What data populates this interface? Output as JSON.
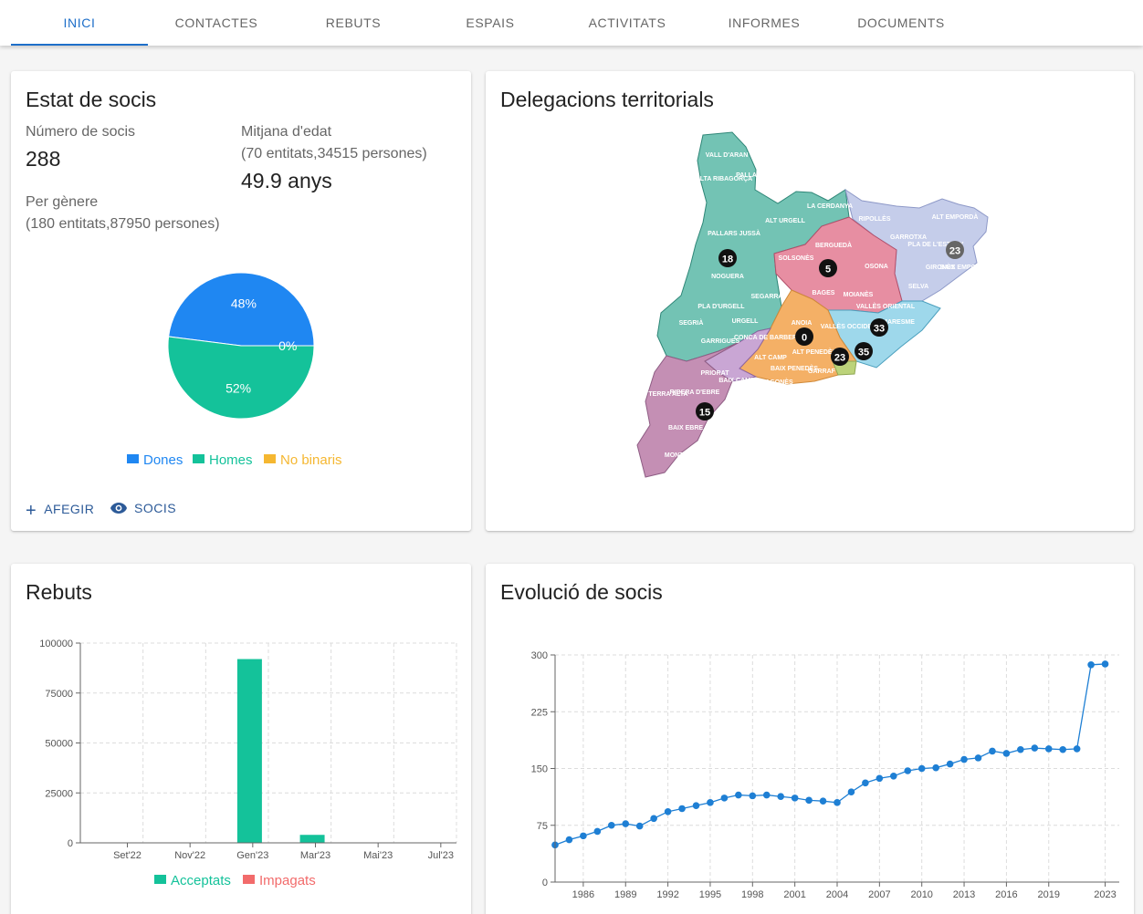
{
  "nav": {
    "tabs": [
      {
        "label": "INICI",
        "active": true
      },
      {
        "label": "CONTACTES"
      },
      {
        "label": "REBUTS"
      },
      {
        "label": "ESPAIS"
      },
      {
        "label": "ACTIVITATS"
      },
      {
        "label": "INFORMES"
      },
      {
        "label": "DOCUMENTS"
      }
    ]
  },
  "socis": {
    "title": "Estat de socis",
    "count_label": "Número de socis",
    "count_value": "288",
    "age_label": "Mitjana d'edat",
    "age_sub": "(70 entitats,34515 persones)",
    "age_value": "49.9 anys",
    "gender_label": "Per gènere",
    "gender_sub": "(180 entitats,87950 persones)",
    "actions": {
      "add": "AFEGIR",
      "view": "SOCIS"
    }
  },
  "gender_chart": {
    "type": "pie",
    "labels": [
      "Dones",
      "Homes",
      "No binaris"
    ],
    "values": [
      48,
      52,
      0
    ],
    "display": [
      "48%",
      "52%",
      "0%"
    ],
    "colors": [
      "#1f87f2",
      "#14c29a",
      "#f5b731"
    ]
  },
  "map": {
    "title": "Delegacions territorials",
    "markers": [
      "18",
      "5",
      "23",
      "0",
      "33",
      "35",
      "23",
      "15"
    ],
    "regions": [
      "VALL D'ARAN",
      "ALTA RIBAGORÇA",
      "PALLARS SOBIRÀ",
      "ALT URGELL",
      "LA CERDANYA",
      "RIPOLLÈS",
      "ALT EMPORDÀ",
      "GARROTXA",
      "PLA DE L'ESTANY",
      "PALLARS JUSSÀ",
      "BERGUEDÀ",
      "SOLSONÈS",
      "OSONA",
      "GIRONÈS",
      "BAIX EMPORDÀ",
      "NOGUERA",
      "SELVA",
      "BAGES",
      "MOIANÈS",
      "SEGARRA",
      "PLA D'URGELL",
      "URGELL",
      "SEGRIÀ",
      "ANOIA",
      "VALLÈS ORIENTAL",
      "VALLÈS OCCIDENTAL",
      "MARESME",
      "CONCA DE BARBERÀ",
      "GARRIGUES",
      "ALT CAMP",
      "ALT PENEDÈS",
      "BAIX PENEDÈS",
      "GARRAF",
      "PRIORAT",
      "TARRAGONÈS",
      "BAIX CAMP",
      "RIBERA D'EBRE",
      "TERRA ALTA",
      "BAIX EBRE",
      "MONTSIÀ"
    ]
  },
  "rebuts": {
    "title": "Rebuts",
    "legend": [
      {
        "label": "Acceptats",
        "color": "#14c29a"
      },
      {
        "label": "Impagats",
        "color": "#f26b6b"
      }
    ]
  },
  "evolucio": {
    "title": "Evolució de socis"
  },
  "chart_data": [
    {
      "type": "bar",
      "categories": [
        "Set'22",
        "Nov'22",
        "Gen'23",
        "Mar'23",
        "Mai'23",
        "Jul'23"
      ],
      "yticks": [
        "0",
        "25000",
        "50000",
        "75000",
        "100000"
      ],
      "ylim": [
        0,
        100000
      ],
      "grid": true,
      "legend_position": "bottom",
      "series": [
        {
          "name": "Acceptats",
          "color": "#14c29a",
          "points": [
            {
              "x": 2.7,
              "value": 92000
            },
            {
              "x": 3.7,
              "value": 4000
            }
          ]
        },
        {
          "name": "Impagats",
          "color": "#f26b6b",
          "points": []
        }
      ]
    },
    {
      "type": "line",
      "xlim": [
        1984,
        2024
      ],
      "ylim": [
        0,
        300
      ],
      "xticks": [
        "1986",
        "1989",
        "1992",
        "1995",
        "1998",
        "2001",
        "2004",
        "2007",
        "2010",
        "2013",
        "2016",
        "2019",
        "2023"
      ],
      "yticks": [
        "0",
        "75",
        "150",
        "225",
        "300"
      ],
      "grid": true,
      "color": "#1e7fd4",
      "x": [
        1984,
        1985,
        1986,
        1987,
        1988,
        1989,
        1990,
        1991,
        1992,
        1993,
        1994,
        1995,
        1996,
        1997,
        1998,
        1999,
        2000,
        2001,
        2002,
        2003,
        2004,
        2005,
        2006,
        2007,
        2008,
        2009,
        2010,
        2011,
        2012,
        2013,
        2014,
        2015,
        2016,
        2017,
        2018,
        2019,
        2020,
        2021,
        2022,
        2023
      ],
      "y": [
        49,
        56,
        61,
        67,
        75,
        77,
        74,
        84,
        93,
        97,
        101,
        105,
        111,
        115,
        114,
        115,
        113,
        111,
        108,
        107,
        105,
        119,
        131,
        137,
        140,
        147,
        150,
        151,
        156,
        162,
        164,
        173,
        170,
        175,
        177,
        176,
        175,
        176,
        287,
        288
      ]
    }
  ]
}
